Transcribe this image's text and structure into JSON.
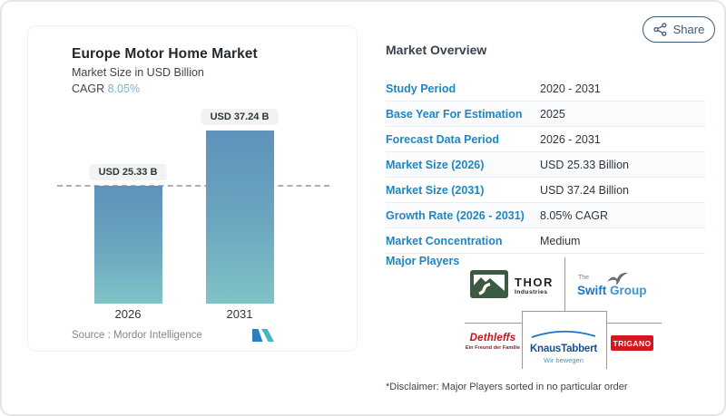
{
  "share": {
    "label": "Share"
  },
  "left_card": {
    "title": "Europe Motor Home Market",
    "subtitle": "Market Size in USD Billion",
    "cagr_label": "CAGR",
    "cagr_value": "8.05%",
    "source_label": "Source :",
    "source_value": "Mordor Intelligence"
  },
  "chart_data": {
    "type": "bar",
    "title": "Europe Motor Home Market",
    "subtitle": "Market Size in USD Billion",
    "categories": [
      "2026",
      "2031"
    ],
    "values": [
      25.33,
      37.24
    ],
    "value_labels": [
      "USD 25.33 B",
      "USD 37.24 B"
    ],
    "unit": "USD Billion",
    "cagr": "8.05%",
    "ylim": [
      0,
      40
    ],
    "grid": false,
    "reference_line": {
      "y": 25.33,
      "style": "dashed"
    },
    "bar_gradient": [
      "#5e92bb",
      "#80c3c7"
    ]
  },
  "overview": {
    "title": "Market Overview",
    "rows": [
      {
        "label": "Study Period",
        "value": "2020 - 2031"
      },
      {
        "label": "Base Year For Estimation",
        "value": "2025"
      },
      {
        "label": "Forecast Data Period",
        "value": "2026 - 2031"
      },
      {
        "label": "Market Size (2026)",
        "value": "USD 25.33 Billion"
      },
      {
        "label": "Market Size (2031)",
        "value": "USD 37.24 Billion"
      },
      {
        "label": "Growth Rate (2026 - 2031)",
        "value": "8.05% CAGR"
      },
      {
        "label": "Market Concentration",
        "value": "Medium"
      }
    ],
    "major_players_label": "Major Players",
    "disclaimer": "*Disclaimer: Major Players sorted in no particular order"
  },
  "players": {
    "thor": {
      "name": "THOR",
      "sub": "Industries"
    },
    "swift": {
      "the": "The",
      "word1": "Swift",
      "word2": "Group"
    },
    "dethleffs": {
      "name": "Dethleffs",
      "sub": "Ein Freund der Familie"
    },
    "knaus": {
      "name": "KnausTabbert",
      "sub": "Wir bewegen"
    },
    "trigano": {
      "name": "TRIGANO"
    }
  },
  "colors": {
    "accent_blue": "#1d87c4",
    "cagr_blue": "#7fb0d2",
    "share_slate": "#3c5a78",
    "bar_top": "#5e92bb",
    "bar_bottom": "#80c3c7",
    "thor_green": "#3c5a42",
    "dethleffs_red": "#c2131b",
    "trigano_red": "#d4161d",
    "knaus_blue": "#174f8f"
  }
}
